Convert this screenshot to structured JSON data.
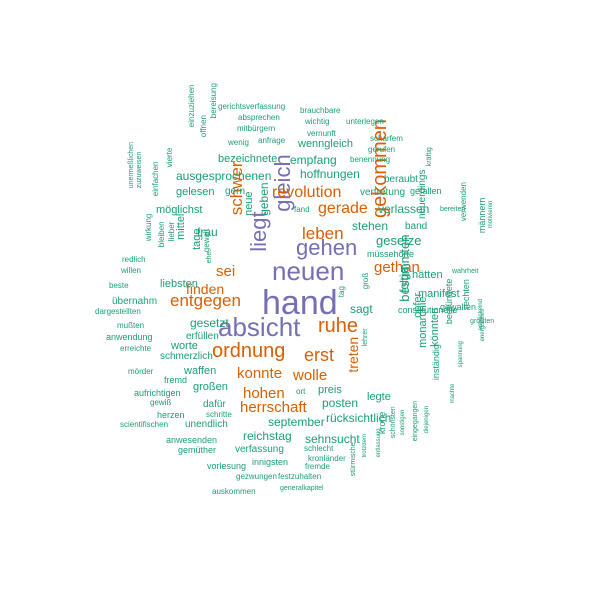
{
  "colors": {
    "purple": "#7570b3",
    "orange": "#d95f02",
    "teal": "#1b9e77"
  },
  "words": [
    {
      "text": "hand",
      "color": "purple"
    },
    {
      "text": "absicht",
      "color": "purple"
    },
    {
      "text": "neuen",
      "color": "purple"
    },
    {
      "text": "gehen",
      "color": "purple"
    },
    {
      "text": "gleich",
      "color": "purple"
    },
    {
      "text": "liegt",
      "color": "purple"
    },
    {
      "text": "ordnung",
      "color": "orange"
    },
    {
      "text": "ruhe",
      "color": "orange"
    },
    {
      "text": "erst",
      "color": "orange"
    },
    {
      "text": "gekommen",
      "color": "orange"
    },
    {
      "text": "entgegen",
      "color": "orange"
    },
    {
      "text": "revolution",
      "color": "orange"
    },
    {
      "text": "schwer",
      "color": "orange"
    },
    {
      "text": "leben",
      "color": "orange"
    },
    {
      "text": "gerade",
      "color": "orange"
    },
    {
      "text": "gethan",
      "color": "orange"
    },
    {
      "text": "finden",
      "color": "orange"
    },
    {
      "text": "sei",
      "color": "orange"
    },
    {
      "text": "konnte",
      "color": "orange"
    },
    {
      "text": "wolle",
      "color": "orange"
    },
    {
      "text": "hohen",
      "color": "orange"
    },
    {
      "text": "herrschaft",
      "color": "orange"
    },
    {
      "text": "treten",
      "color": "orange"
    },
    {
      "text": "gesetze",
      "color": "teal"
    },
    {
      "text": "bestimmten",
      "color": "teal"
    },
    {
      "text": "folge",
      "color": "teal"
    },
    {
      "text": "hoffnungen",
      "color": "teal"
    },
    {
      "text": "verlassen",
      "color": "teal"
    },
    {
      "text": "ausgesprochenen",
      "color": "teal"
    },
    {
      "text": "frau",
      "color": "teal"
    },
    {
      "text": "geben",
      "color": "teal"
    },
    {
      "text": "neue",
      "color": "teal"
    },
    {
      "text": "stehen",
      "color": "teal"
    },
    {
      "text": "sagt",
      "color": "teal"
    },
    {
      "text": "gesetzt",
      "color": "teal"
    },
    {
      "text": "september",
      "color": "teal"
    },
    {
      "text": "rücksichtlich",
      "color": "teal"
    },
    {
      "text": "sehnsucht",
      "color": "teal"
    },
    {
      "text": "reichstag",
      "color": "teal"
    },
    {
      "text": "posten",
      "color": "teal"
    },
    {
      "text": "preis",
      "color": "teal"
    },
    {
      "text": "empfang",
      "color": "teal"
    },
    {
      "text": "möglichst",
      "color": "teal"
    },
    {
      "text": "waffen",
      "color": "teal"
    },
    {
      "text": "großen",
      "color": "teal"
    },
    {
      "text": "worte",
      "color": "teal"
    },
    {
      "text": "liebsten",
      "color": "teal"
    },
    {
      "text": "tage",
      "color": "teal"
    },
    {
      "text": "mittel",
      "color": "teal"
    },
    {
      "text": "manifest",
      "color": "teal"
    },
    {
      "text": "hätten",
      "color": "teal"
    },
    {
      "text": "monarchie",
      "color": "teal"
    },
    {
      "text": "opfer",
      "color": "teal"
    },
    {
      "text": "könnten",
      "color": "teal"
    },
    {
      "text": "legte",
      "color": "teal"
    },
    {
      "text": "bezeichnete",
      "color": "teal"
    },
    {
      "text": "wenngleich",
      "color": "teal"
    },
    {
      "text": "gelesen",
      "color": "teal"
    },
    {
      "text": "gern",
      "color": "teal"
    },
    {
      "text": "schmerzlich",
      "color": "teal"
    },
    {
      "text": "erfüllen",
      "color": "teal"
    },
    {
      "text": "dafür",
      "color": "teal"
    },
    {
      "text": "unendlich",
      "color": "teal"
    },
    {
      "text": "verfassung",
      "color": "teal"
    },
    {
      "text": "innigsten",
      "color": "teal"
    },
    {
      "text": "beraubt",
      "color": "teal"
    },
    {
      "text": "übernahm",
      "color": "teal"
    },
    {
      "text": "anwendung",
      "color": "teal"
    },
    {
      "text": "vertretung",
      "color": "teal"
    },
    {
      "text": "gefallen",
      "color": "teal"
    },
    {
      "text": "band",
      "color": "teal"
    },
    {
      "text": "neuerdings",
      "color": "teal"
    },
    {
      "text": "müssehörte",
      "color": "teal"
    },
    {
      "text": "constitutionelle",
      "color": "teal"
    },
    {
      "text": "gewalten",
      "color": "teal"
    },
    {
      "text": "männern",
      "color": "teal"
    },
    {
      "text": "verwenden",
      "color": "teal"
    },
    {
      "text": "rechten",
      "color": "teal"
    },
    {
      "text": "begründete",
      "color": "teal"
    },
    {
      "text": "inständig",
      "color": "teal"
    },
    {
      "text": "krone",
      "color": "teal"
    },
    {
      "text": "fremd",
      "color": "teal"
    },
    {
      "text": "aufrichtigen",
      "color": "teal"
    },
    {
      "text": "herzen",
      "color": "teal"
    },
    {
      "text": "anwesenden",
      "color": "teal"
    },
    {
      "text": "gemüther",
      "color": "teal"
    },
    {
      "text": "vorlesung",
      "color": "teal"
    },
    {
      "text": "gezwungen",
      "color": "teal"
    },
    {
      "text": "festzuhalten",
      "color": "teal"
    },
    {
      "text": "fremde",
      "color": "teal"
    },
    {
      "text": "kronländer",
      "color": "teal"
    },
    {
      "text": "schlecht",
      "color": "teal"
    },
    {
      "text": "auskommen",
      "color": "teal"
    },
    {
      "text": "generalkapitel",
      "color": "teal"
    },
    {
      "text": "scientifischen",
      "color": "teal"
    },
    {
      "text": "schritte",
      "color": "teal"
    },
    {
      "text": "gewiß",
      "color": "teal"
    },
    {
      "text": "mörder",
      "color": "teal"
    },
    {
      "text": "erreichte",
      "color": "teal"
    },
    {
      "text": "mußten",
      "color": "teal"
    },
    {
      "text": "dargestellten",
      "color": "teal"
    },
    {
      "text": "beste",
      "color": "teal"
    },
    {
      "text": "willen",
      "color": "teal"
    },
    {
      "text": "redlich",
      "color": "teal"
    },
    {
      "text": "bleiben",
      "color": "teal"
    },
    {
      "text": "lieber",
      "color": "teal"
    },
    {
      "text": "wirkung",
      "color": "teal"
    },
    {
      "text": "unermeßlichen",
      "color": "teal"
    },
    {
      "text": "zuzuweisen",
      "color": "teal"
    },
    {
      "text": "einfachen",
      "color": "teal"
    },
    {
      "text": "vierte",
      "color": "teal"
    },
    {
      "text": "einzuziehen",
      "color": "teal"
    },
    {
      "text": "offnen",
      "color": "teal"
    },
    {
      "text": "bereisung",
      "color": "teal"
    },
    {
      "text": "gerichtsverfassung",
      "color": "teal"
    },
    {
      "text": "brauchbare",
      "color": "teal"
    },
    {
      "text": "absprechen",
      "color": "teal"
    },
    {
      "text": "wichtig",
      "color": "teal"
    },
    {
      "text": "unterlegen",
      "color": "teal"
    },
    {
      "text": "mitbürgern",
      "color": "teal"
    },
    {
      "text": "vernunft",
      "color": "teal"
    },
    {
      "text": "wenig",
      "color": "teal"
    },
    {
      "text": "anfrage",
      "color": "teal"
    },
    {
      "text": "scharfem",
      "color": "teal"
    },
    {
      "text": "gerufen",
      "color": "teal"
    },
    {
      "text": "benennung",
      "color": "teal"
    },
    {
      "text": "kräftig",
      "color": "teal"
    },
    {
      "text": "bereiten",
      "color": "teal"
    },
    {
      "text": "motivieren",
      "color": "teal"
    },
    {
      "text": "wahrheit",
      "color": "teal"
    },
    {
      "text": "größten",
      "color": "teal"
    },
    {
      "text": "entwickelnd",
      "color": "teal"
    },
    {
      "text": "energisches",
      "color": "teal"
    },
    {
      "text": "spannung",
      "color": "teal"
    },
    {
      "text": "machte",
      "color": "teal"
    },
    {
      "text": "diejenigen",
      "color": "teal"
    },
    {
      "text": "eingegangen",
      "color": "teal"
    },
    {
      "text": "sonstigen",
      "color": "teal"
    },
    {
      "text": "schönsten",
      "color": "teal"
    },
    {
      "text": "entlassung",
      "color": "teal"
    },
    {
      "text": "trotzdem",
      "color": "teal"
    },
    {
      "text": "stürmische",
      "color": "teal"
    },
    {
      "text": "lehrer",
      "color": "teal"
    },
    {
      "text": "groß",
      "color": "teal"
    },
    {
      "text": "tag",
      "color": "teal"
    },
    {
      "text": "ort",
      "color": "teal"
    },
    {
      "text": "fand",
      "color": "teal"
    },
    {
      "text": "ehe",
      "color": "teal"
    },
    {
      "text": "gewalt",
      "color": "teal"
    }
  ]
}
